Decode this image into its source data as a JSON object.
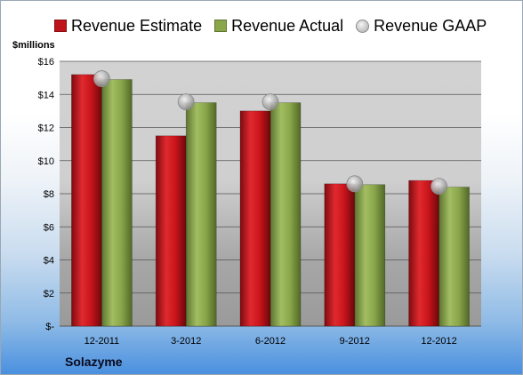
{
  "chart_data": {
    "type": "bar",
    "ylabel": "$millions",
    "footer": "Solazyme",
    "categories": [
      "12-2011",
      "3-2012",
      "6-2012",
      "9-2012",
      "12-2012"
    ],
    "series": [
      {
        "name": "Revenue Estimate",
        "values": [
          15.2,
          11.5,
          13.0,
          8.6,
          8.8
        ],
        "color": "#c0141c"
      },
      {
        "name": "Revenue Actual",
        "values": [
          14.9,
          13.5,
          13.5,
          8.55,
          8.4
        ],
        "color": "#8aa64a"
      },
      {
        "name": "Revenue GAAP",
        "values": [
          14.95,
          13.55,
          13.55,
          8.6,
          8.45
        ],
        "color": "#b4b4b4",
        "marker": "circle"
      }
    ],
    "ylim": [
      0,
      16
    ],
    "yticks": [
      0,
      2,
      4,
      6,
      8,
      10,
      12,
      14,
      16
    ],
    "ytick_labels": [
      "$-",
      "$2",
      "$4",
      "$6",
      "$8",
      "$10",
      "$12",
      "$14",
      "$16"
    ],
    "grid": true,
    "legend_position": "top"
  }
}
